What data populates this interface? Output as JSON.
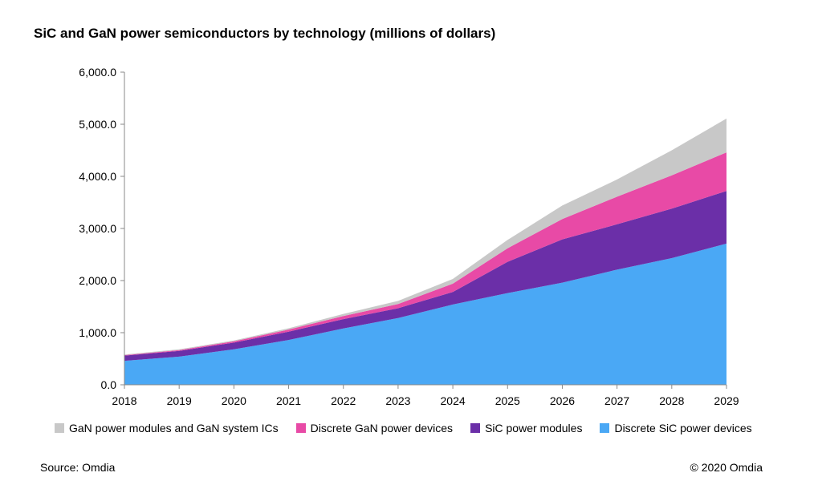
{
  "title": "SiC and GaN power semiconductors by technology (millions of dollars)",
  "source": "Source: Omdia",
  "copyright": "© 2020 Omdia",
  "chart_data": {
    "type": "area",
    "stacked": true,
    "title": "SiC and GaN power semiconductors by technology (millions of dollars)",
    "xlabel": "",
    "ylabel": "",
    "x": [
      "2018",
      "2019",
      "2020",
      "2021",
      "2022",
      "2023",
      "2024",
      "2025",
      "2026",
      "2027",
      "2028",
      "2029"
    ],
    "ylim": [
      0,
      6000
    ],
    "yticks": [
      "0.0",
      "1,000.0",
      "2,000.0",
      "3,000.0",
      "4,000.0",
      "5,000.0",
      "6,000.0"
    ],
    "legend_position": "bottom",
    "grid": false,
    "series": [
      {
        "name": "Discrete SiC power devices",
        "color": "#4aa8f5",
        "values": [
          460,
          540,
          680,
          860,
          1080,
          1280,
          1540,
          1760,
          1960,
          2210,
          2430,
          2710
        ]
      },
      {
        "name": "SiC power modules",
        "color": "#6b2fa8",
        "values": [
          100,
          110,
          130,
          160,
          180,
          190,
          240,
          600,
          830,
          870,
          950,
          1010
        ]
      },
      {
        "name": "Discrete GaN power devices",
        "color": "#e84aa6",
        "values": [
          10,
          15,
          25,
          40,
          60,
          80,
          160,
          260,
          390,
          530,
          640,
          740
        ]
      },
      {
        "name": "GaN power modules and GaN system ICs",
        "color": "#c8c8c8",
        "values": [
          10,
          15,
          15,
          25,
          40,
          60,
          90,
          160,
          260,
          330,
          480,
          650
        ]
      }
    ],
    "legend_order": [
      "GaN power modules and GaN system ICs",
      "Discrete GaN power devices",
      "SiC power modules",
      "Discrete SiC power devices"
    ]
  }
}
